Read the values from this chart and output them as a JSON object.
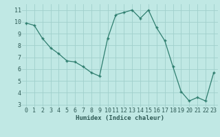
{
  "x": [
    0,
    1,
    2,
    3,
    4,
    5,
    6,
    7,
    8,
    9,
    10,
    11,
    12,
    13,
    14,
    15,
    16,
    17,
    18,
    19,
    20,
    21,
    22,
    23
  ],
  "y": [
    9.9,
    9.7,
    8.6,
    7.8,
    7.3,
    6.7,
    6.6,
    6.2,
    5.7,
    5.4,
    8.6,
    10.6,
    10.8,
    11.0,
    10.3,
    11.0,
    9.5,
    8.4,
    6.2,
    4.1,
    3.3,
    3.6,
    3.3,
    5.7
  ],
  "xlabel": "Humidex (Indice chaleur)",
  "ylim": [
    2.8,
    11.5
  ],
  "xlim": [
    -0.5,
    23.5
  ],
  "yticks": [
    3,
    4,
    5,
    6,
    7,
    8,
    9,
    10,
    11
  ],
  "xticks": [
    0,
    1,
    2,
    3,
    4,
    5,
    6,
    7,
    8,
    9,
    10,
    11,
    12,
    13,
    14,
    15,
    16,
    17,
    18,
    19,
    20,
    21,
    22,
    23
  ],
  "line_color": "#2e7d6e",
  "marker": "+",
  "bg_color": "#c0e8e4",
  "grid_color": "#a0d0cc",
  "tick_label_color": "#2e5a55",
  "xlabel_color": "#2e5a55",
  "xlabel_fontsize": 6.5,
  "tick_fontsize": 6.0
}
